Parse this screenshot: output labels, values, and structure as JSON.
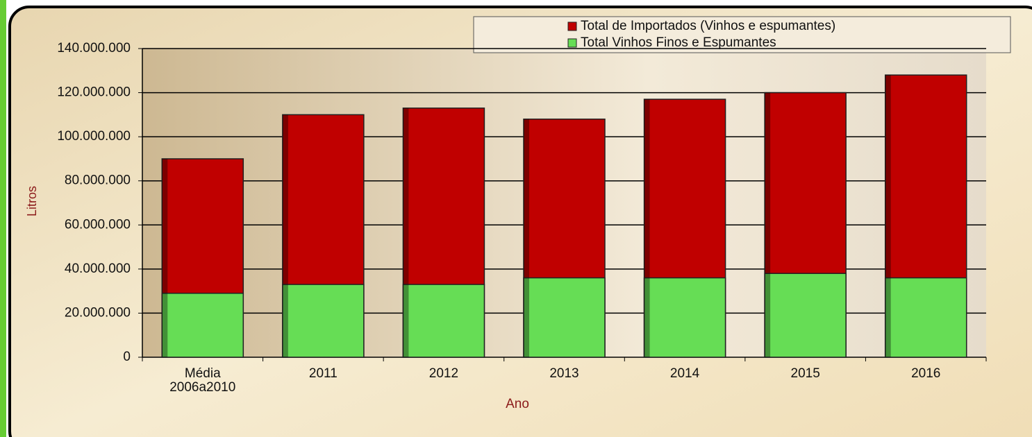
{
  "chart_data": {
    "type": "bar",
    "overlap": true,
    "x_label": "Ano",
    "y_label": "Litros",
    "categories": [
      "Média\n2006a2010",
      "2011",
      "2012",
      "2013",
      "2014",
      "2015",
      "2016"
    ],
    "series": [
      {
        "name": "Total de Importados (Vinhos e espumantes)",
        "color": "#c00000",
        "values": [
          90000000,
          110000000,
          113000000,
          108000000,
          117000000,
          120000000,
          128000000
        ]
      },
      {
        "name": "Total Vinhos Finos e Espumantes",
        "color": "#66dd55",
        "values": [
          29000000,
          33000000,
          33000000,
          36000000,
          36000000,
          38000000,
          36000000
        ]
      }
    ],
    "ylim": [
      0,
      140000000
    ],
    "yticks": [
      0,
      {
        "value": 20000000,
        "label": "20.000.000"
      },
      {
        "value": 40000000,
        "label": "40.000.000"
      },
      {
        "value": 60000000,
        "label": "60.000.000"
      },
      {
        "value": 80000000,
        "label": "80.000.000"
      },
      {
        "value": 100000000,
        "label": "100.000.000"
      },
      {
        "value": 120000000,
        "label": "120.000.000"
      },
      {
        "value": 140000000,
        "label": "140.000.000"
      }
    ],
    "grid": true,
    "legend": "top"
  }
}
